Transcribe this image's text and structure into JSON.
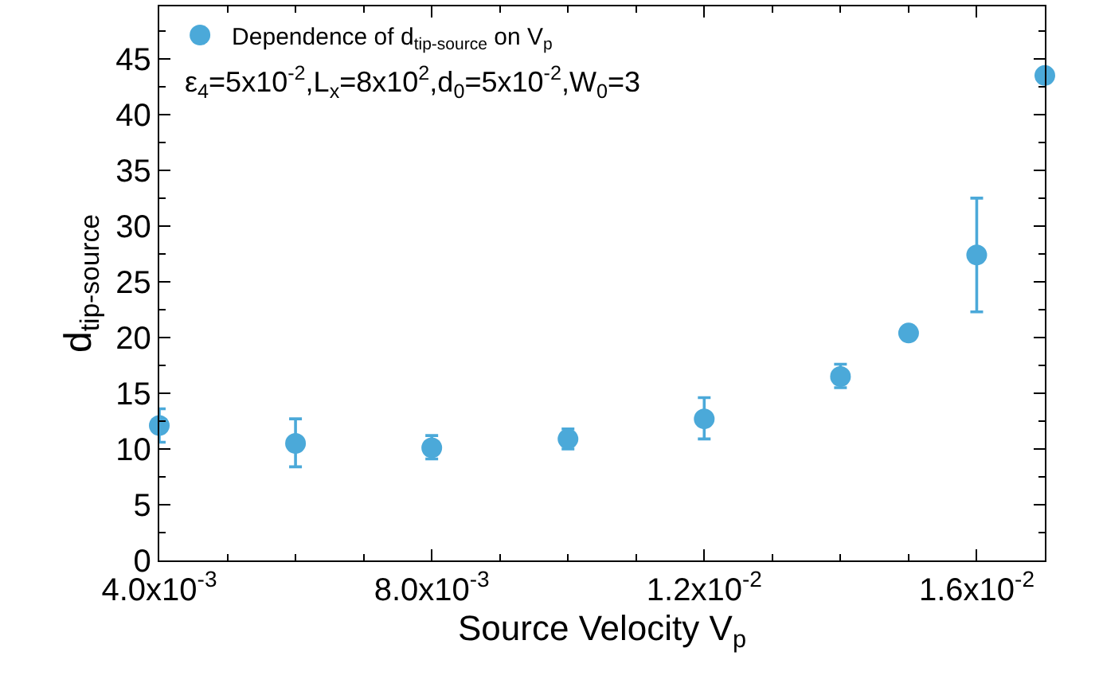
{
  "chart_data": {
    "type": "scatter",
    "xlabel": "Source Velocity V$_{p}$",
    "ylabel": "d$_{tip-source}$",
    "x": [
      0.004,
      0.006,
      0.008,
      0.01,
      0.012,
      0.014,
      0.015,
      0.016,
      0.017
    ],
    "series": [
      {
        "name": "Dependence of d$_{tip-source}$ on V$_{p}$",
        "color": "#4ba9d9",
        "values": [
          12.1,
          10.5,
          10.1,
          10.9,
          12.7,
          16.5,
          20.4,
          27.4,
          43.5
        ],
        "errors": [
          [
            10.6,
            13.6
          ],
          [
            8.4,
            12.7
          ],
          [
            9.1,
            11.2
          ],
          [
            10.0,
            11.8
          ],
          [
            10.9,
            14.6
          ],
          [
            15.5,
            17.6
          ],
          null,
          [
            22.3,
            32.5
          ],
          null
        ]
      }
    ],
    "annotations": [
      "ε$_{4}$=5x10$^{-2}$,L$_{x}$=8x10$^{2}$,d$_{0}$=5x10$^{-2}$,W$_{0}$=3"
    ],
    "xlim": [
      0.004,
      0.017
    ],
    "ylim": [
      0,
      49.7
    ],
    "xticks": [
      {
        "value": 0.004,
        "label": "4.0x10$^{-3}$"
      },
      {
        "value": 0.008,
        "label": "8.0x10$^{-3}$"
      },
      {
        "value": 0.012,
        "label": "1.2x10$^{-2}$"
      },
      {
        "value": 0.016,
        "label": "1.6x10$^{-2}$"
      }
    ],
    "yticks": [
      0,
      5,
      10,
      15,
      20,
      25,
      30,
      35,
      40,
      45
    ],
    "marker": "circle",
    "legend": "top left"
  }
}
